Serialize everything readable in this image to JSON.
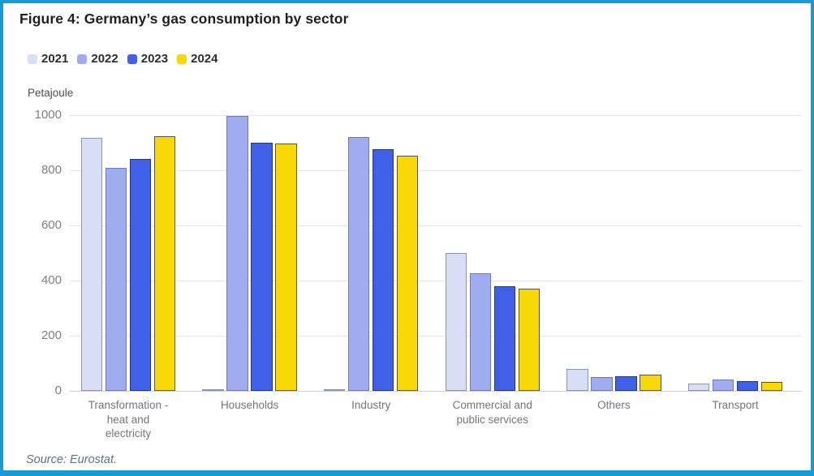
{
  "figure": {
    "title": "Figure 4: Germany’s gas consumption by sector",
    "source": "Source: Eurostat."
  },
  "colors": {
    "frame_border": "#169bd5",
    "gridline": "#e4e4e7",
    "baseline": "#cfcfd4",
    "title_text": "#1f1f1f",
    "axis_text": "#7d7d84",
    "category_text": "#75757b",
    "source_text": "#5b718a"
  },
  "chart_data": {
    "type": "bar",
    "title": "Figure 4: Germany’s gas consumption by sector",
    "ylabel": "Petajoule",
    "xlabel": "",
    "unit": "Petajoule",
    "ylim": [
      0,
      1000
    ],
    "yticks": [
      0,
      200,
      400,
      600,
      800,
      1000
    ],
    "grid": true,
    "legend_position": "top-left",
    "legend_entries": [
      "2021",
      "2022",
      "2023",
      "2024"
    ],
    "categories": [
      "Transformation - heat and electricity",
      "Households",
      "Industry",
      "Commercial and public services",
      "Others",
      "Transport"
    ],
    "category_lines": [
      [
        "Transformation -",
        "heat and",
        "electricity"
      ],
      [
        "Households"
      ],
      [
        "Industry"
      ],
      [
        "Commercial and",
        "public services"
      ],
      [
        "Others"
      ],
      [
        "Transport"
      ]
    ],
    "series": [
      {
        "name": "2021",
        "fill": "#d8def6",
        "border": "#8b96ae",
        "values": [
          915,
          2,
          2,
          500,
          78,
          25
        ]
      },
      {
        "name": "2022",
        "fill": "#9fadf0",
        "border": "#6d7cab",
        "values": [
          807,
          995,
          920,
          425,
          50,
          42
        ]
      },
      {
        "name": "2023",
        "fill": "#4160e8",
        "border": "#26387a",
        "values": [
          840,
          900,
          875,
          380,
          54,
          36
        ]
      },
      {
        "name": "2024",
        "fill": "#f8d806",
        "border": "#56544a",
        "values": [
          922,
          895,
          852,
          370,
          60,
          31
        ]
      }
    ]
  }
}
